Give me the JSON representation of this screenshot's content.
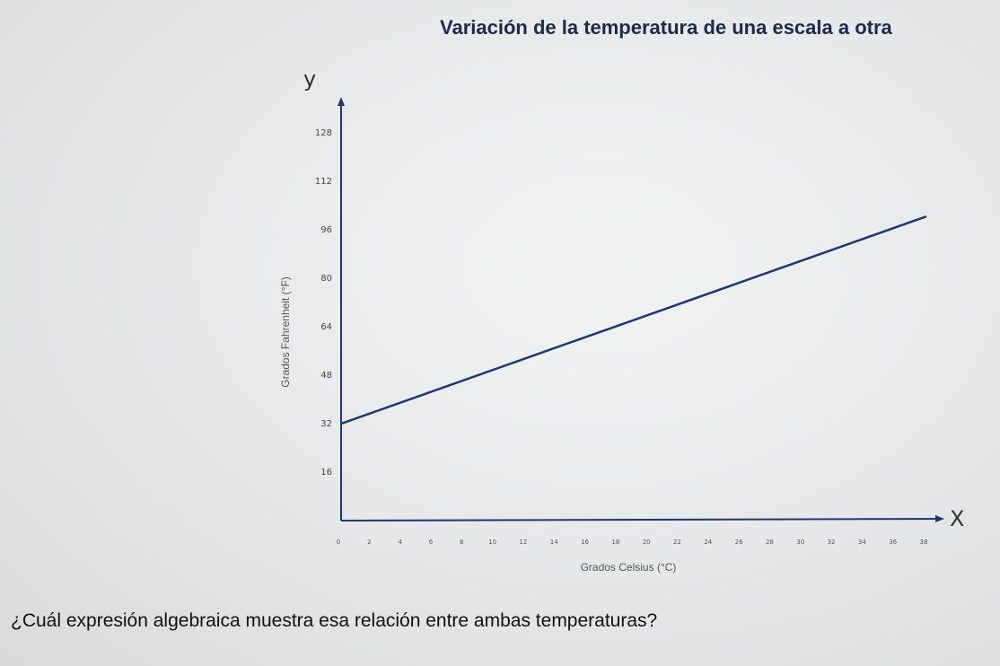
{
  "chart_data": {
    "type": "line",
    "title": "Variación de la temperatura de una escala a otra",
    "xlabel": "Grados Celsius (°C)",
    "ylabel": "Grados Fahrenheit (°F)",
    "x_axis_letter": "X",
    "y_axis_letter": "y",
    "xlim": [
      0,
      38
    ],
    "ylim": [
      0,
      128
    ],
    "xticks": [
      0,
      2,
      4,
      6,
      8,
      10,
      12,
      14,
      16,
      18,
      20,
      22,
      24,
      26,
      28,
      30,
      32,
      34,
      36,
      38
    ],
    "yticks": [
      16,
      32,
      48,
      64,
      80,
      96,
      112,
      128
    ],
    "grid": false,
    "series": [
      {
        "x": [
          0,
          38
        ],
        "y": [
          32,
          100.4
        ],
        "color": "#1f3770"
      }
    ]
  },
  "question": "¿Cuál expresión algebraica muestra esa relación entre ambas temperaturas?"
}
